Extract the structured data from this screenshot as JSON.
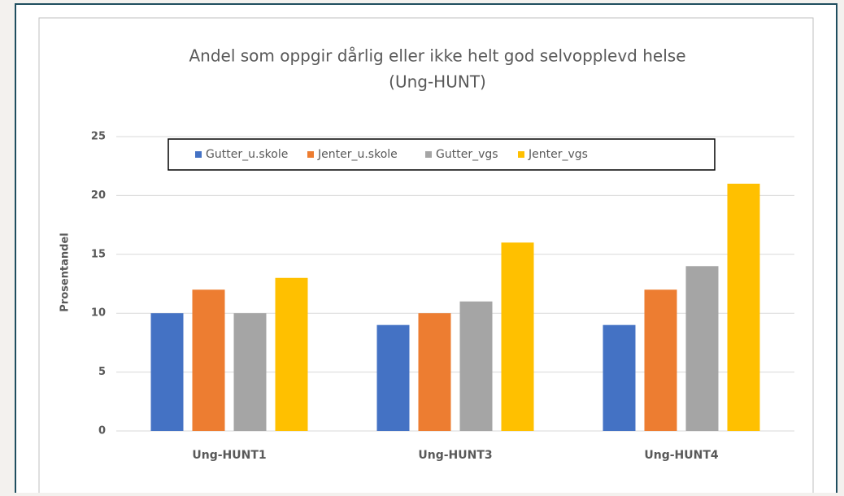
{
  "chart_data": {
    "type": "bar",
    "title": "Andel som oppgir dårlig eller ikke helt god selvopplevd  helse",
    "subtitle": "(Ung-HUNT)",
    "y_label": "Prosentandel",
    "categories": [
      "Ung-HUNT1",
      "Ung-HUNT3",
      "Ung-HUNT4"
    ],
    "series": [
      {
        "name": "Gutter_u.skole",
        "color": "#4472c4",
        "values": [
          10,
          9,
          9
        ]
      },
      {
        "name": "Jenter_u.skole",
        "color": "#ed7d31",
        "values": [
          12,
          10,
          12
        ]
      },
      {
        "name": "Gutter_vgs",
        "color": "#a5a5a5",
        "values": [
          10,
          11,
          14
        ]
      },
      {
        "name": "Jenter_vgs",
        "color": "#ffc000",
        "values": [
          13,
          16,
          21
        ]
      }
    ],
    "ylim": [
      0,
      25
    ],
    "yticks": [
      0,
      5,
      10,
      15,
      20,
      25
    ],
    "grid": true,
    "legend": "top"
  }
}
